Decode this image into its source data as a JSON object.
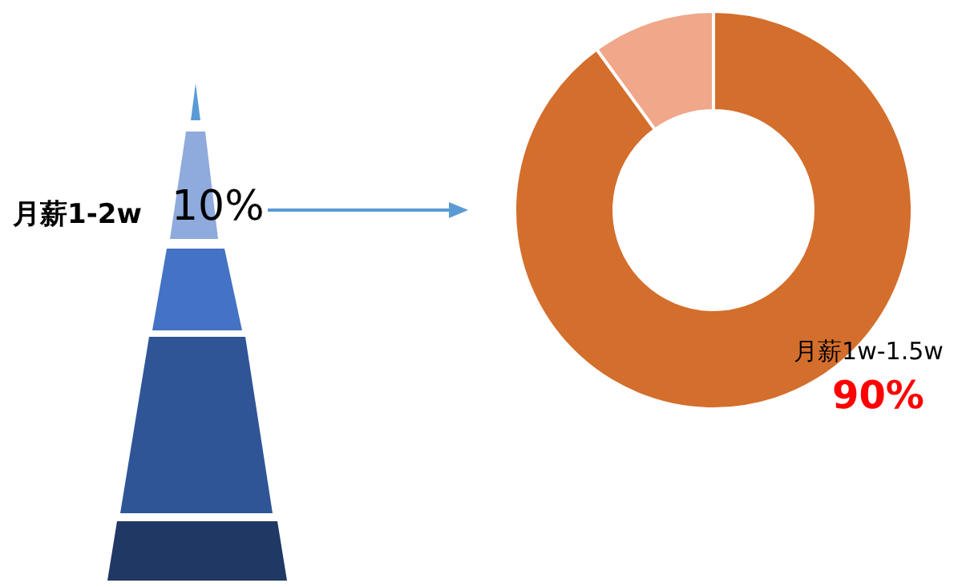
{
  "chart_data": {
    "type": "donut",
    "categories": [
      "月薪1w-1.5w",
      null
    ],
    "values": [
      90,
      10
    ],
    "colors": [
      "#d46e2c",
      "#f0a78a"
    ],
    "value_labels": [
      "90%",
      null
    ],
    "annotations": [
      "月薪1-2w",
      "10%"
    ],
    "legend": false
  }
}
